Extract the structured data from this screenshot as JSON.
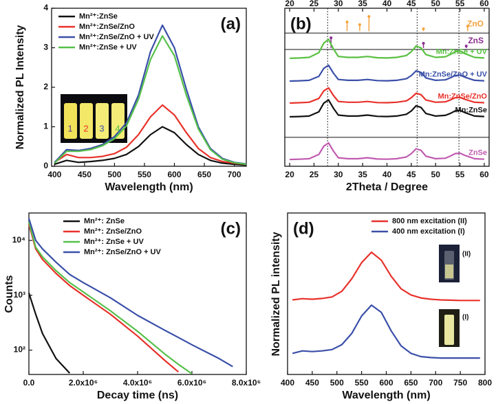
{
  "chart_data": [
    {
      "type": "line",
      "panel_label": "(a)",
      "x_label": "Wavelength (nm)",
      "y_label": "Normalized PL Intensity",
      "x": [
        400,
        420,
        440,
        460,
        480,
        500,
        520,
        540,
        560,
        580,
        600,
        620,
        640,
        660,
        680,
        700,
        720
      ],
      "series": [
        {
          "name": "Mn²⁺:ZnSe",
          "color": "#111111",
          "values": [
            0.05,
            0.15,
            0.1,
            0.12,
            0.15,
            0.2,
            0.3,
            0.5,
            0.8,
            1.0,
            0.85,
            0.55,
            0.3,
            0.15,
            0.08,
            0.05,
            0.03
          ]
        },
        {
          "name": "Mn²⁺:ZnSe/ZnO",
          "color": "#e8312a",
          "values": [
            0.1,
            0.3,
            0.22,
            0.22,
            0.25,
            0.32,
            0.48,
            0.8,
            1.25,
            1.55,
            1.3,
            0.85,
            0.45,
            0.22,
            0.12,
            0.08,
            0.05
          ]
        },
        {
          "name": "Mn²⁺:ZnSe/ZnO + UV",
          "color": "#3a4fa8",
          "values": [
            0.1,
            0.42,
            0.4,
            0.45,
            0.55,
            0.75,
            1.1,
            1.8,
            2.9,
            3.57,
            3.0,
            1.95,
            1.0,
            0.45,
            0.2,
            0.1,
            0.06
          ]
        },
        {
          "name": "Mn²⁺:ZnSe + UV",
          "color": "#55c04a",
          "values": [
            0.08,
            0.38,
            0.38,
            0.42,
            0.52,
            0.7,
            1.02,
            1.7,
            2.7,
            3.3,
            2.8,
            1.8,
            0.95,
            0.42,
            0.18,
            0.09,
            0.05
          ]
        }
      ],
      "xlim": [
        395,
        720
      ],
      "xticks": [
        400,
        450,
        500,
        550,
        600,
        650,
        700
      ],
      "ylim": [
        0,
        4
      ],
      "yticks": [
        0,
        1,
        2,
        3,
        4
      ],
      "legend": "upper left",
      "inset_labels": [
        "1",
        "2",
        "3",
        "4"
      ],
      "inset_label_colors": [
        "#5a3a8a",
        "#e8312a",
        "#3a4fa8",
        "#55c04a"
      ]
    },
    {
      "type": "line",
      "panel_label": "(b)",
      "x_label": "2Theta / Degree",
      "x": [
        20,
        22,
        24,
        26,
        27,
        28,
        29,
        30,
        32,
        34,
        36,
        38,
        40,
        42,
        44,
        45,
        46,
        47,
        48,
        50,
        52,
        53,
        54,
        55,
        56,
        58,
        60
      ],
      "series": [
        {
          "name": "Mn:ZnSe + UV",
          "color": "#58c040",
          "values": [
            68.3,
            68.5,
            68.9,
            71.9,
            77.9,
            80.3,
            74.3,
            69.5,
            68.9,
            68.9,
            69.5,
            68.7,
            68.5,
            68.9,
            70.1,
            72.5,
            76.1,
            74.9,
            70.7,
            68.9,
            69.3,
            70.7,
            72.5,
            72.9,
            71.3,
            68.9,
            68.5
          ]
        },
        {
          "name": "Mn:ZnSe/ZnO + UV",
          "color": "#3a4fa8",
          "values": [
            53.9,
            54.1,
            54.4,
            56.9,
            61.9,
            63.9,
            58.9,
            54.9,
            54.4,
            54.4,
            54.9,
            54.2,
            54.1,
            54.4,
            55.4,
            57.4,
            60.4,
            59.4,
            55.9,
            54.4,
            54.7,
            55.9,
            57.4,
            57.7,
            56.4,
            54.4,
            54.1
          ]
        },
        {
          "name": "Mn:ZnSe/ZnO",
          "color": "#e8312a",
          "values": [
            40,
            40.2,
            40.5,
            42.9,
            47.7,
            49.6,
            44.8,
            41,
            40.5,
            40.5,
            41,
            40.3,
            40.2,
            40.5,
            41.4,
            43.4,
            46.2,
            45.3,
            41.9,
            40.5,
            40.8,
            41.9,
            43.4,
            43.6,
            42.4,
            40.5,
            40.2
          ]
        },
        {
          "name": "Mn:ZnSe",
          "color": "#111111",
          "values": [
            31.3,
            31.5,
            31.8,
            34.5,
            39.9,
            42,
            36.7,
            32.4,
            31.8,
            31.8,
            32.4,
            31.6,
            31.5,
            31.8,
            32.9,
            35,
            38.3,
            37.2,
            33.4,
            31.8,
            32.2,
            33.4,
            35,
            35.4,
            34,
            31.8,
            31.5
          ]
        },
        {
          "name": "ZnSe",
          "color": "#c05ab0",
          "values": [
            4.3,
            4.5,
            4.8,
            7.5,
            12.7,
            14.8,
            9.6,
            5.4,
            4.8,
            4.8,
            5.4,
            4.6,
            4.5,
            4.8,
            5.9,
            8,
            11.1,
            10.1,
            6.4,
            4.8,
            5.1,
            6.4,
            8,
            8.3,
            6.9,
            4.8,
            4.5
          ]
        }
      ],
      "sticks": [
        {
          "name": "ZnO",
          "color": "#f5a23c",
          "base": 85.5,
          "x": [
            31.8,
            34.4,
            36.3,
            47.5,
            56.6
          ],
          "values": [
            91.3,
            89.6,
            94.8,
            87,
            88.7
          ]
        },
        {
          "name": "ZnS",
          "color": "#8a2d8f",
          "base": 74.8,
          "x": [
            28.5,
            47.5,
            56.3
          ],
          "values": [
            81.3,
            77.8,
            76.1
          ]
        }
      ],
      "vlines": [
        27.8,
        46.2,
        54.8
      ],
      "xlim": [
        19,
        61
      ],
      "xticks": [
        20,
        25,
        30,
        35,
        40,
        45,
        50,
        55,
        60
      ],
      "xticks_top": true,
      "ylim": [
        0,
        100
      ],
      "legend": "inline"
    },
    {
      "type": "line",
      "panel_label": "(c)",
      "x_label": "Decay time (ns)",
      "y_label": "Counts",
      "x": [
        0,
        250000,
        500000,
        1000000,
        1500000,
        2000000,
        3000000,
        4000000,
        5000000,
        5500000,
        6000000,
        7000000,
        7500000
      ],
      "series": [
        {
          "name": "Mn²⁺: ZnSe",
          "color": "#111111",
          "values": [
            1100,
            450,
            200,
            70,
            38,
            null,
            null,
            null,
            null,
            null,
            null,
            null,
            null
          ]
        },
        {
          "name": "Mn²⁺: ZnSe/ZnO",
          "color": "#e8312a",
          "values": [
            20000,
            7000,
            4500,
            2500,
            1500,
            1000,
            450,
            180,
            65,
            40,
            null,
            null,
            null
          ]
        },
        {
          "name": "Mn²⁺: ZnSe + UV",
          "color": "#55c04a",
          "values": [
            22000,
            7500,
            5000,
            2800,
            1700,
            1150,
            520,
            220,
            85,
            55,
            37,
            null,
            null
          ]
        },
        {
          "name": "Mn²⁺: ZnSe/ZnO + UV",
          "color": "#3a4fa8",
          "values": [
            25000,
            10000,
            7000,
            4000,
            2400,
            1700,
            900,
            430,
            230,
            170,
            125,
            70,
            50
          ]
        }
      ],
      "xlim": [
        0,
        8000000
      ],
      "xticks": [
        {
          "value": 0,
          "label": "0.0"
        },
        {
          "value": 2000000,
          "label": "2.0x10⁶"
        },
        {
          "value": 4000000,
          "label": "4.0x10⁶"
        },
        {
          "value": 6000000,
          "label": "6.0x10⁶"
        },
        {
          "value": 8000000,
          "label": "8.0x10⁶"
        }
      ],
      "ylim": [
        36,
        31600
      ],
      "yscale": "log",
      "yticks": [
        {
          "value": 100,
          "label": "10²"
        },
        {
          "value": 1000,
          "label": "10³"
        },
        {
          "value": 10000,
          "label": "10⁴"
        }
      ],
      "legend": "upper left"
    },
    {
      "type": "line",
      "panel_label": "(d)",
      "x_label": "Wavelength (nm)",
      "y_label": "Normalized PL intensity",
      "x": [
        410,
        430,
        450,
        470,
        490,
        510,
        530,
        550,
        570,
        590,
        610,
        630,
        650,
        670,
        690,
        710,
        730,
        750,
        770,
        790
      ],
      "series": [
        {
          "name": "800 nm excitation (II)",
          "color": "#e8312a",
          "values": [
            3.0,
            3.05,
            3.03,
            3.06,
            3.12,
            3.35,
            3.85,
            4.5,
            4.92,
            4.6,
            3.95,
            3.45,
            3.2,
            3.08,
            3.03,
            3.0,
            2.99,
            2.98,
            2.98,
            2.98
          ]
        },
        {
          "name": "400 nm excitation (I)",
          "color": "#3a4fa8",
          "values": [
            0.85,
            0.95,
            0.92,
            0.95,
            1.0,
            1.2,
            1.65,
            2.35,
            2.79,
            2.5,
            1.75,
            1.15,
            0.85,
            0.72,
            0.68,
            0.66,
            0.66,
            0.66,
            0.66,
            0.66
          ]
        }
      ],
      "xlim": [
        400,
        800
      ],
      "xticks": [
        400,
        450,
        500,
        550,
        600,
        650,
        700,
        750,
        800
      ],
      "ylim": [
        0,
        6.5
      ],
      "legend": "upper right",
      "inset_labels": [
        "(II)",
        "(I)"
      ]
    }
  ]
}
